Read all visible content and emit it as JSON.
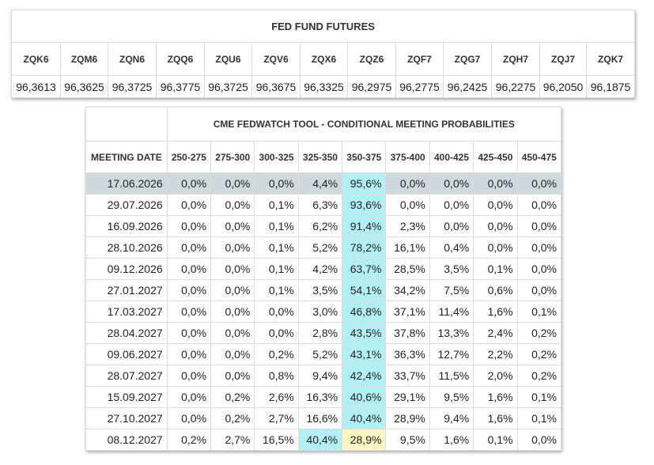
{
  "futures": {
    "title": "FED FUND FUTURES",
    "columns": [
      {
        "code": "ZQK6",
        "price": "96,3613"
      },
      {
        "code": "ZQM6",
        "price": "96,3625"
      },
      {
        "code": "ZQN6",
        "price": "96,3725"
      },
      {
        "code": "ZQQ6",
        "price": "96,3775"
      },
      {
        "code": "ZQU6",
        "price": "96,3725"
      },
      {
        "code": "ZQV6",
        "price": "96,3675"
      },
      {
        "code": "ZQX6",
        "price": "96,3325"
      },
      {
        "code": "ZQZ6",
        "price": "96,2975"
      },
      {
        "code": "ZQF7",
        "price": "96,2775"
      },
      {
        "code": "ZQG7",
        "price": "96,2425"
      },
      {
        "code": "ZQH7",
        "price": "96,2275"
      },
      {
        "code": "ZQJ7",
        "price": "96,2050"
      },
      {
        "code": "ZQK7",
        "price": "96,1875"
      }
    ]
  },
  "fedwatch": {
    "title": "CME FEDWATCH TOOL - CONDITIONAL MEETING PROBABILITIES",
    "date_header": "MEETING DATE",
    "ranges": [
      "250-275",
      "275-300",
      "300-325",
      "325-350",
      "350-375",
      "375-400",
      "400-425",
      "425-450",
      "450-475"
    ],
    "colors": {
      "row_highlight": "#cfd8dc",
      "max_cell": "#b3f0f6",
      "second_cell": "#fbf6c4"
    },
    "rows": [
      {
        "date": "17.06.2026",
        "values": [
          "0,0%",
          "0,0%",
          "0,0%",
          "4,4%",
          "95,6%",
          "0,0%",
          "0,0%",
          "0,0%",
          "0,0%"
        ],
        "row_highlight": true,
        "cyan": [
          4
        ],
        "yellow": []
      },
      {
        "date": "29.07.2026",
        "values": [
          "0,0%",
          "0,0%",
          "0,1%",
          "6,3%",
          "93,6%",
          "0,0%",
          "0,0%",
          "0,0%",
          "0,0%"
        ],
        "row_highlight": false,
        "cyan": [
          4
        ],
        "yellow": []
      },
      {
        "date": "16.09.2026",
        "values": [
          "0,0%",
          "0,0%",
          "0,1%",
          "6,2%",
          "91,4%",
          "2,3%",
          "0,0%",
          "0,0%",
          "0,0%"
        ],
        "row_highlight": false,
        "cyan": [
          4
        ],
        "yellow": []
      },
      {
        "date": "28.10.2026",
        "values": [
          "0,0%",
          "0,0%",
          "0,1%",
          "5,2%",
          "78,2%",
          "16,1%",
          "0,4%",
          "0,0%",
          "0,0%"
        ],
        "row_highlight": false,
        "cyan": [
          4
        ],
        "yellow": []
      },
      {
        "date": "09.12.2026",
        "values": [
          "0,0%",
          "0,0%",
          "0,1%",
          "4,2%",
          "63,7%",
          "28,5%",
          "3,5%",
          "0,1%",
          "0,0%"
        ],
        "row_highlight": false,
        "cyan": [
          4
        ],
        "yellow": []
      },
      {
        "date": "27.01.2027",
        "values": [
          "0,0%",
          "0,0%",
          "0,1%",
          "3,5%",
          "54,1%",
          "34,2%",
          "7,5%",
          "0,6%",
          "0,0%"
        ],
        "row_highlight": false,
        "cyan": [
          4
        ],
        "yellow": []
      },
      {
        "date": "17.03.2027",
        "values": [
          "0,0%",
          "0,0%",
          "0,0%",
          "3,0%",
          "46,8%",
          "37,1%",
          "11,4%",
          "1,6%",
          "0,1%"
        ],
        "row_highlight": false,
        "cyan": [
          4
        ],
        "yellow": []
      },
      {
        "date": "28.04.2027",
        "values": [
          "0,0%",
          "0,0%",
          "0,0%",
          "2,8%",
          "43,5%",
          "37,8%",
          "13,3%",
          "2,4%",
          "0,2%"
        ],
        "row_highlight": false,
        "cyan": [
          4
        ],
        "yellow": []
      },
      {
        "date": "09.06.2027",
        "values": [
          "0,0%",
          "0,0%",
          "0,2%",
          "5,2%",
          "43,1%",
          "36,3%",
          "12,7%",
          "2,2%",
          "0,2%"
        ],
        "row_highlight": false,
        "cyan": [
          4
        ],
        "yellow": []
      },
      {
        "date": "28.07.2027",
        "values": [
          "0,0%",
          "0,0%",
          "0,8%",
          "9,4%",
          "42,4%",
          "33,7%",
          "11,5%",
          "2,0%",
          "0,2%"
        ],
        "row_highlight": false,
        "cyan": [
          4
        ],
        "yellow": []
      },
      {
        "date": "15.09.2027",
        "values": [
          "0,0%",
          "0,2%",
          "2,6%",
          "16,3%",
          "40,6%",
          "29,1%",
          "9,5%",
          "1,6%",
          "0,1%"
        ],
        "row_highlight": false,
        "cyan": [
          4
        ],
        "yellow": []
      },
      {
        "date": "27.10.2027",
        "values": [
          "0,0%",
          "0,2%",
          "2,7%",
          "16,6%",
          "40,4%",
          "28,9%",
          "9,4%",
          "1,6%",
          "0,1%"
        ],
        "row_highlight": false,
        "cyan": [
          4
        ],
        "yellow": []
      },
      {
        "date": "08.12.2027",
        "values": [
          "0,2%",
          "2,7%",
          "16,5%",
          "40,4%",
          "28,9%",
          "9,5%",
          "1,6%",
          "0,1%",
          "0,0%"
        ],
        "row_highlight": false,
        "cyan": [
          3
        ],
        "yellow": [
          4
        ]
      }
    ]
  }
}
